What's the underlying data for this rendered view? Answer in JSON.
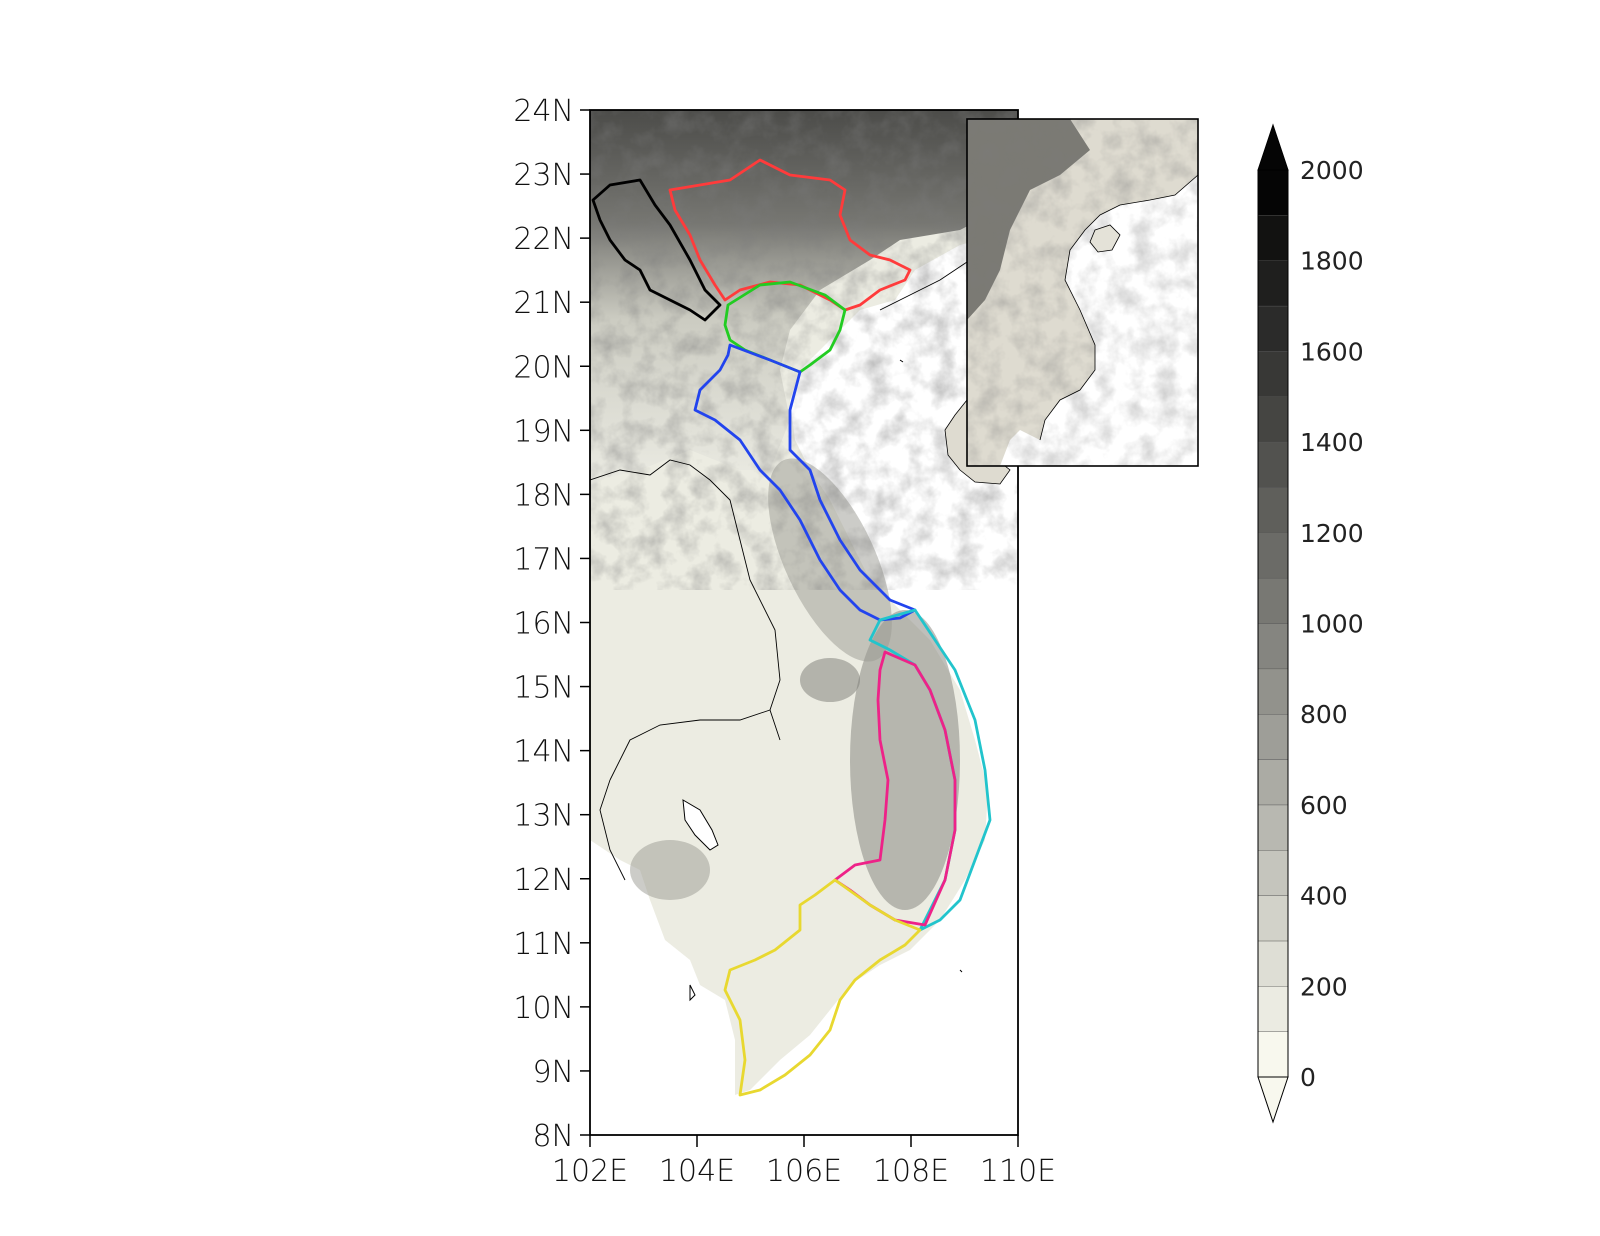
{
  "map": {
    "y_ticks": [
      "24N",
      "23N",
      "22N",
      "21N",
      "20N",
      "19N",
      "18N",
      "17N",
      "16N",
      "15N",
      "14N",
      "13N",
      "12N",
      "11N",
      "10N",
      "9N",
      "8N"
    ],
    "x_ticks": [
      "102E",
      "104E",
      "106E",
      "108E",
      "110E"
    ],
    "regions": [
      {
        "id": "northwest",
        "color": "#000000"
      },
      {
        "id": "northeast",
        "color": "#ff3b3b"
      },
      {
        "id": "red-river-delta",
        "color": "#22cc22"
      },
      {
        "id": "north-central",
        "color": "#2244ee"
      },
      {
        "id": "south-central-coast",
        "color": "#22c4cc"
      },
      {
        "id": "central-highlands",
        "color": "#ee2288"
      },
      {
        "id": "south",
        "color": "#e8d830"
      }
    ]
  },
  "colorbar": {
    "labels": [
      "2000",
      "1800",
      "1600",
      "1400",
      "1200",
      "1000",
      "800",
      "600",
      "400",
      "200",
      "0"
    ],
    "levels": 20,
    "low_color": "#f8f8ee",
    "high_color": "#050505"
  }
}
